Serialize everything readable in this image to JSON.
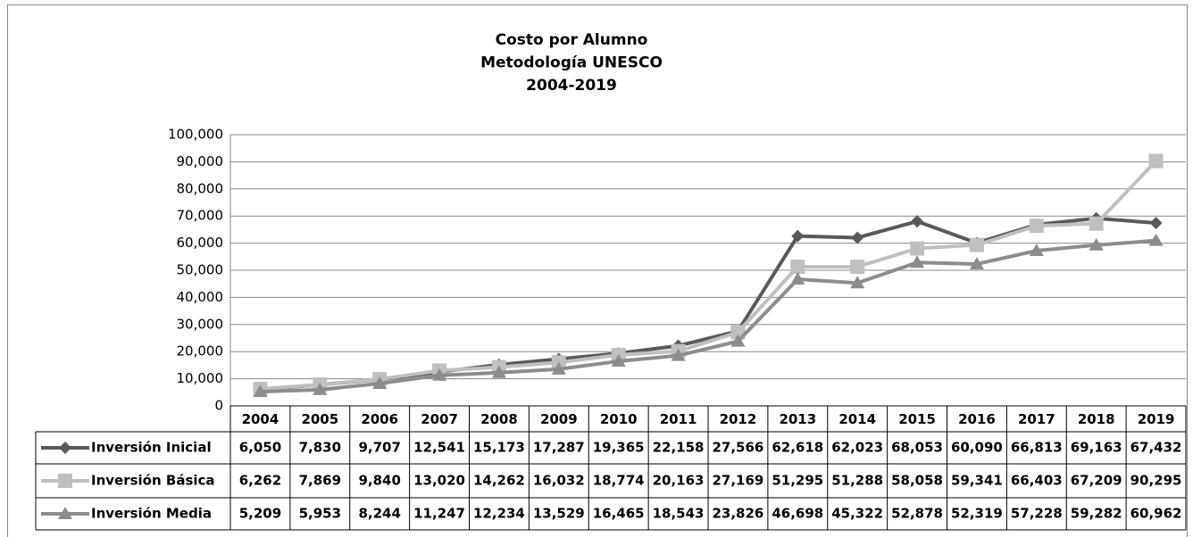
{
  "chart_data": {
    "type": "line",
    "title": [
      "Costo por Alumno",
      "Metodología UNESCO",
      "2004-2019"
    ],
    "categories": [
      "2004",
      "2005",
      "2006",
      "2007",
      "2008",
      "2009",
      "2010",
      "2011",
      "2012",
      "2013",
      "2014",
      "2015",
      "2016",
      "2017",
      "2018",
      "2019"
    ],
    "series": [
      {
        "name": "Inversión Inicial",
        "color": "#595959",
        "marker": "diamond",
        "values": [
          6050,
          7830,
          9707,
          12541,
          15173,
          17287,
          19365,
          22158,
          27566,
          62618,
          62023,
          68053,
          60090,
          66813,
          69163,
          67432
        ],
        "value_labels": [
          "6,050",
          "7,830",
          "9,707",
          "12,541",
          "15,173",
          "17,287",
          "19,365",
          "22,158",
          "27,566",
          "62,618",
          "62,023",
          "68,053",
          "60,090",
          "66,813",
          "69,163",
          "67,432"
        ]
      },
      {
        "name": "Inversión Básica",
        "color": "#bfbfbf",
        "marker": "square",
        "values": [
          6262,
          7869,
          9840,
          13020,
          14262,
          16032,
          18774,
          20163,
          27169,
          51295,
          51288,
          58058,
          59341,
          66403,
          67209,
          90295
        ],
        "value_labels": [
          "6,262",
          "7,869",
          "9,840",
          "13,020",
          "14,262",
          "16,032",
          "18,774",
          "20,163",
          "27,169",
          "51,295",
          "51,288",
          "58,058",
          "59,341",
          "66,403",
          "67,209",
          "90,295"
        ]
      },
      {
        "name": "Inversión Media",
        "color": "#8c8c8c",
        "marker": "triangle",
        "values": [
          5209,
          5953,
          8244,
          11247,
          12234,
          13529,
          16465,
          18543,
          23826,
          46698,
          45322,
          52878,
          52319,
          57228,
          59282,
          60962
        ],
        "value_labels": [
          "5,209",
          "5,953",
          "8,244",
          "11,247",
          "12,234",
          "13,529",
          "16,465",
          "18,543",
          "23,826",
          "46,698",
          "45,322",
          "52,878",
          "52,319",
          "57,228",
          "59,282",
          "60,962"
        ]
      }
    ],
    "ylim": [
      0,
      100000
    ],
    "yticks": [
      0,
      {
        "value": 10000,
        "label": "10,000"
      },
      {
        "value": 20000,
        "label": "20,000"
      },
      {
        "value": 30000,
        "label": "30,000"
      },
      {
        "value": 40000,
        "label": "40,000"
      },
      {
        "value": 50000,
        "label": "50,000"
      },
      {
        "value": 60000,
        "label": "60,000"
      },
      {
        "value": 70000,
        "label": "70,000"
      },
      {
        "value": 80000,
        "label": "80,000"
      },
      {
        "value": 90000,
        "label": "90,000"
      },
      {
        "value": 100000,
        "label": "100,000"
      }
    ],
    "grid": true
  }
}
